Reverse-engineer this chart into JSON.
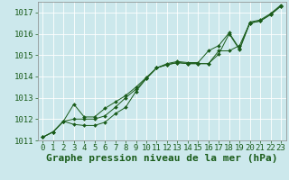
{
  "background_color": "#cce8ec",
  "grid_color": "#ffffff",
  "line_color": "#1a5c1a",
  "marker_color": "#1a5c1a",
  "title": "Graphe pression niveau de la mer (hPa)",
  "ylim": [
    1011,
    1017.5
  ],
  "xlim": [
    -0.5,
    23.5
  ],
  "yticks": [
    1011,
    1012,
    1013,
    1014,
    1015,
    1016,
    1017
  ],
  "xticks": [
    0,
    1,
    2,
    3,
    4,
    5,
    6,
    7,
    8,
    9,
    10,
    11,
    12,
    13,
    14,
    15,
    16,
    17,
    18,
    19,
    20,
    21,
    22,
    23
  ],
  "series1": [
    1011.15,
    1011.4,
    1011.9,
    1011.75,
    1011.7,
    1011.7,
    1011.85,
    1012.25,
    1012.55,
    1013.3,
    1013.9,
    1014.4,
    1014.55,
    1014.65,
    1014.6,
    1014.6,
    1014.6,
    1015.05,
    1016.0,
    1015.25,
    1016.5,
    1016.6,
    1016.9,
    1017.3
  ],
  "series2": [
    1011.15,
    1011.4,
    1011.9,
    1012.0,
    1012.0,
    1012.0,
    1012.15,
    1012.55,
    1013.0,
    1013.4,
    1013.9,
    1014.4,
    1014.55,
    1014.65,
    1014.6,
    1014.6,
    1014.6,
    1015.2,
    1015.2,
    1015.45,
    1016.5,
    1016.6,
    1016.9,
    1017.3
  ],
  "series3": [
    1011.15,
    1011.4,
    1011.9,
    1012.7,
    1012.1,
    1012.1,
    1012.5,
    1012.8,
    1013.1,
    1013.5,
    1013.95,
    1014.4,
    1014.6,
    1014.7,
    1014.65,
    1014.65,
    1015.2,
    1015.45,
    1016.05,
    1015.3,
    1016.55,
    1016.65,
    1016.95,
    1017.35
  ],
  "title_fontsize": 8,
  "tick_fontsize": 6.5
}
